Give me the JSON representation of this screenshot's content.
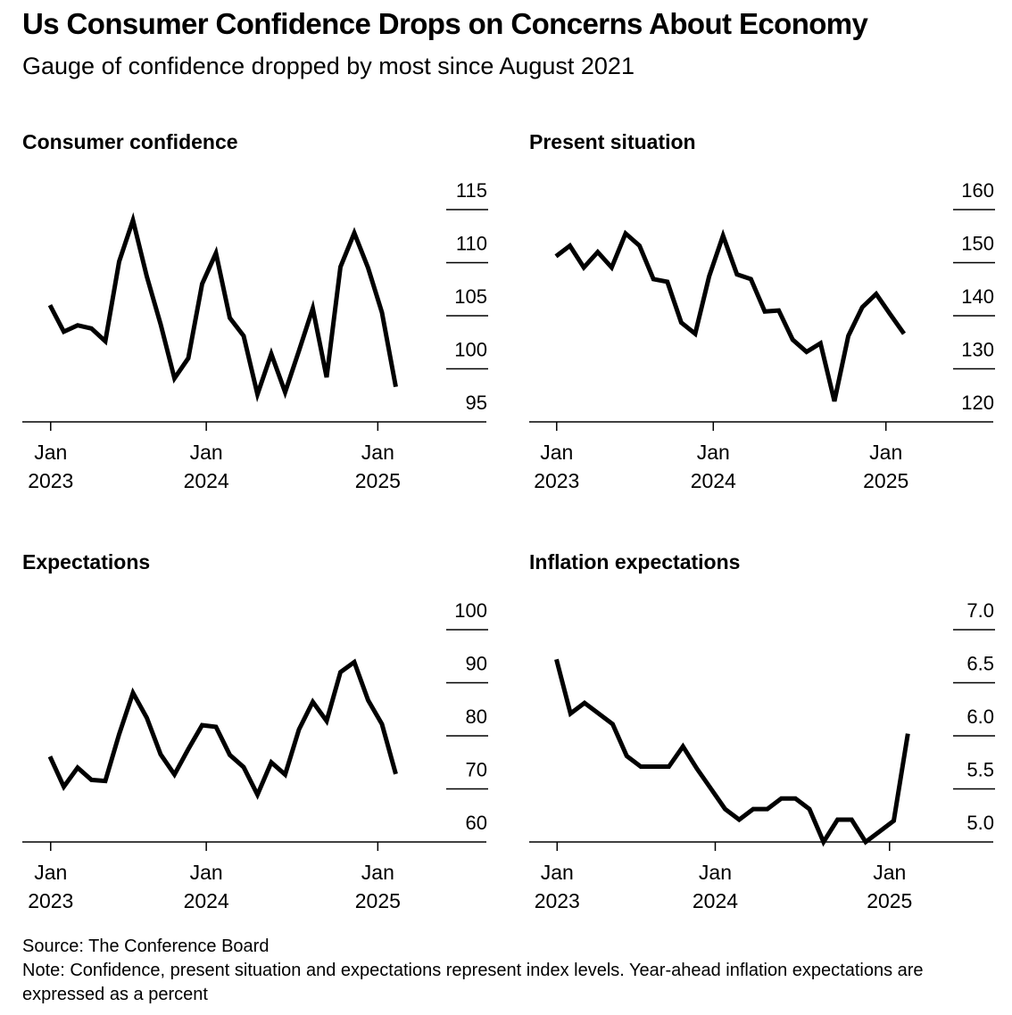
{
  "header": {
    "title": "Us Consumer Confidence Drops on Concerns About Economy",
    "subtitle": "Gauge of confidence dropped by most since August 2021"
  },
  "footer": {
    "source": "Source: The Conference Board",
    "note": "Note: Confidence, present situation and expectations represent index levels. Year-ahead inflation expectations are expressed as a percent"
  },
  "chart_data": [
    {
      "type": "line",
      "title": "Consumer confidence",
      "xlabel": "",
      "ylabel": "",
      "x": [
        "Jan 2023",
        "Feb 2023",
        "Mar 2023",
        "Apr 2023",
        "May 2023",
        "Jun 2023",
        "Jul 2023",
        "Aug 2023",
        "Sep 2023",
        "Oct 2023",
        "Nov 2023",
        "Dec 2023",
        "Jan 2024",
        "Feb 2024",
        "Mar 2024",
        "Apr 2024",
        "May 2024",
        "Jun 2024",
        "Jul 2024",
        "Aug 2024",
        "Sep 2024",
        "Oct 2024",
        "Nov 2024",
        "Dec 2024",
        "Jan 2025",
        "Feb 2025"
      ],
      "series": [
        {
          "name": "Consumer confidence",
          "values": [
            106.0,
            103.5,
            104.1,
            103.8,
            102.6,
            110.1,
            114.0,
            108.7,
            104.2,
            99.1,
            101.0,
            108.0,
            110.9,
            104.8,
            103.1,
            97.6,
            101.4,
            97.8,
            101.7,
            105.7,
            99.2,
            109.6,
            112.8,
            109.5,
            105.3,
            98.3
          ]
        }
      ],
      "yticks": [
        95,
        100,
        105,
        110,
        115
      ],
      "ytick_labels": [
        "95",
        "100",
        "105",
        "110",
        "115"
      ],
      "ylim": [
        95,
        115
      ],
      "xtick_labels": [
        [
          "Jan",
          "2023"
        ],
        [
          "Jan",
          "2024"
        ],
        [
          "Jan",
          "2025"
        ]
      ],
      "y_axis_side": "right",
      "grid": false
    },
    {
      "type": "line",
      "title": "Present situation",
      "xlabel": "",
      "ylabel": "",
      "x": [
        "Jan 2023",
        "Feb 2023",
        "Mar 2023",
        "Apr 2023",
        "May 2023",
        "Jun 2023",
        "Jul 2023",
        "Aug 2023",
        "Sep 2023",
        "Oct 2023",
        "Nov 2023",
        "Dec 2023",
        "Jan 2024",
        "Feb 2024",
        "Mar 2024",
        "Apr 2024",
        "May 2024",
        "Jun 2024",
        "Jul 2024",
        "Aug 2024",
        "Sep 2024",
        "Oct 2024",
        "Nov 2024",
        "Dec 2024",
        "Jan 2025",
        "Feb 2025"
      ],
      "series": [
        {
          "name": "Present situation",
          "values": [
            151.2,
            153.2,
            149.1,
            152.0,
            149.1,
            155.5,
            153.2,
            146.9,
            146.4,
            138.7,
            136.6,
            147.4,
            155.1,
            147.8,
            146.9,
            140.8,
            141.0,
            135.5,
            133.2,
            134.8,
            123.9,
            136.2,
            141.6,
            144.1,
            140.3,
            136.6
          ]
        }
      ],
      "yticks": [
        120,
        130,
        140,
        150,
        160
      ],
      "ytick_labels": [
        "120",
        "130",
        "140",
        "150",
        "160"
      ],
      "ylim": [
        120,
        160
      ],
      "xtick_labels": [
        [
          "Jan",
          "2023"
        ],
        [
          "Jan",
          "2024"
        ],
        [
          "Jan",
          "2025"
        ]
      ],
      "y_axis_side": "right",
      "grid": false
    },
    {
      "type": "line",
      "title": "Expectations",
      "xlabel": "",
      "ylabel": "",
      "x": [
        "Jan 2023",
        "Feb 2023",
        "Mar 2023",
        "Apr 2023",
        "May 2023",
        "Jun 2023",
        "Jul 2023",
        "Aug 2023",
        "Sep 2023",
        "Oct 2023",
        "Nov 2023",
        "Dec 2023",
        "Jan 2024",
        "Feb 2024",
        "Mar 2024",
        "Apr 2024",
        "May 2024",
        "Jun 2024",
        "Jul 2024",
        "Aug 2024",
        "Sep 2024",
        "Oct 2024",
        "Nov 2024",
        "Dec 2024",
        "Jan 2025",
        "Feb 2025"
      ],
      "series": [
        {
          "name": "Expectations",
          "values": [
            76.1,
            70.4,
            74.0,
            71.7,
            71.5,
            80.3,
            88.1,
            83.4,
            76.5,
            72.7,
            77.5,
            82.0,
            81.7,
            76.4,
            74.1,
            68.9,
            75.0,
            72.7,
            81.2,
            86.4,
            82.8,
            92.0,
            93.9,
            86.7,
            82.2,
            72.8
          ]
        }
      ],
      "yticks": [
        60,
        70,
        80,
        90,
        100
      ],
      "ytick_labels": [
        "60",
        "70",
        "80",
        "90",
        "100"
      ],
      "ylim": [
        60,
        100
      ],
      "xtick_labels": [
        [
          "Jan",
          "2023"
        ],
        [
          "Jan",
          "2024"
        ],
        [
          "Jan",
          "2025"
        ]
      ],
      "y_axis_side": "right",
      "grid": false
    },
    {
      "type": "line",
      "title": "Inflation expectations",
      "xlabel": "",
      "ylabel": "",
      "x": [
        "Jan 2023",
        "Feb 2023",
        "Mar 2023",
        "Apr 2023",
        "May 2023",
        "Jun 2023",
        "Jul 2023",
        "Aug 2023",
        "Sep 2023",
        "Oct 2023",
        "Nov 2023",
        "Dec 2023",
        "Jan 2024",
        "Feb 2024",
        "Mar 2024",
        "Apr 2024",
        "May 2024",
        "Jun 2024",
        "Jul 2024",
        "Aug 2024",
        "Sep 2024",
        "Oct 2024",
        "Nov 2024",
        "Dec 2024",
        "Jan 2025",
        "Feb 2025"
      ],
      "series": [
        {
          "name": "Inflation expectations",
          "values": [
            6.72,
            6.21,
            6.31,
            6.21,
            6.11,
            5.81,
            5.71,
            5.71,
            5.71,
            5.9,
            5.69,
            5.5,
            5.31,
            5.21,
            5.31,
            5.31,
            5.41,
            5.41,
            5.31,
            5.0,
            5.21,
            5.21,
            5.0,
            5.1,
            5.2,
            6.02
          ]
        }
      ],
      "yticks": [
        5.0,
        5.5,
        6.0,
        6.5,
        7.0
      ],
      "ytick_labels": [
        "5.0",
        "5.5",
        "6.0",
        "6.5",
        "7.0"
      ],
      "ylim": [
        5.0,
        7.0
      ],
      "xtick_labels": [
        [
          "Jan",
          "2023"
        ],
        [
          "Jan",
          "2024"
        ],
        [
          "Jan",
          "2025"
        ]
      ],
      "y_axis_side": "right",
      "grid": false
    }
  ]
}
